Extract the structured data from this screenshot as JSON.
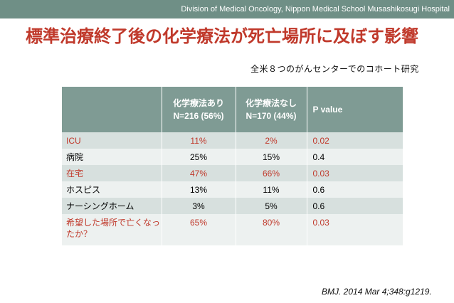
{
  "header": {
    "institution": "Division of Medical Oncology, Nippon Medical School Musashikosugi Hospital"
  },
  "slide": {
    "title": "標準治療終了後の化学療法が死亡場所に及ぼす影響",
    "subtitle": "全米８つのがんセンターでのコホート研究",
    "citation": "BMJ. 2014 Mar 4;348:g1219."
  },
  "table": {
    "headers": {
      "col1_line1": "化学療法あり",
      "col1_line2": "N=216 (56%)",
      "col2_line1": "化学療法なし",
      "col2_line2": "N=170 (44%)",
      "col3": "P value"
    },
    "rows": [
      {
        "label": "ICU",
        "with_chemo": "11%",
        "without_chemo": "2%",
        "p": "0.02"
      },
      {
        "label": "病院",
        "with_chemo": "25%",
        "without_chemo": "15%",
        "p": "0.4"
      },
      {
        "label": "在宅",
        "with_chemo": "47%",
        "without_chemo": "66%",
        "p": "0.03"
      },
      {
        "label": "ホスピス",
        "with_chemo": "13%",
        "without_chemo": "11%",
        "p": "0.6"
      },
      {
        "label": "ナーシングホーム",
        "with_chemo": "3%",
        "without_chemo": "5%",
        "p": "0.6"
      },
      {
        "label": "希望した場所で亡くなったか？",
        "with_chemo": "65%",
        "without_chemo": "80%",
        "p": "0.03"
      }
    ],
    "highlight_color": "#c0392b"
  }
}
